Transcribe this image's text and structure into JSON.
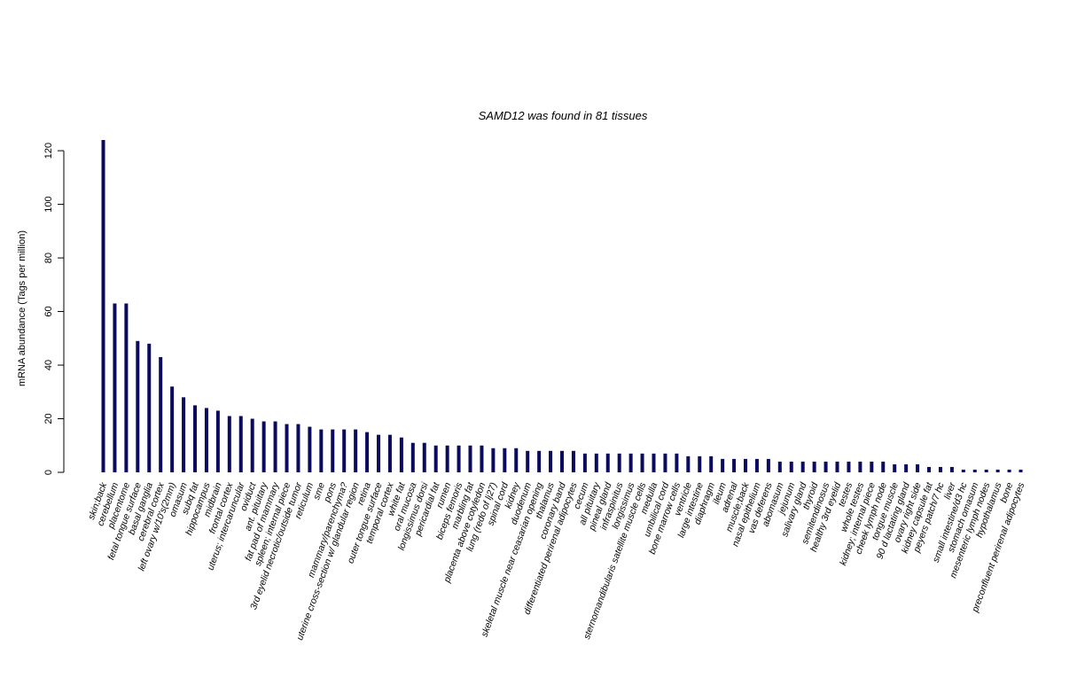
{
  "chart_data": {
    "type": "bar",
    "title": "SAMD12  was found in  81  tissues",
    "ylabel": "mRNA abundance (Tags per million)",
    "xlabel": "",
    "ylim": [
      0,
      124
    ],
    "yticks": [
      0,
      20,
      40,
      60,
      80,
      100,
      120
    ],
    "bar_color": "#0a0a5e",
    "grid": false,
    "categories": [
      "skin;back",
      "cerebellum",
      "placentome",
      "fetal tongue surface",
      "basal ganglia",
      "cerebral cortex",
      "left ovary w/10's(2mm)",
      "omasum",
      "subq fat",
      "hippocampus",
      "midbrain",
      "frontal cortex",
      "uterus; intercaruncular",
      "oviduct",
      "ant. pituitary",
      "fat pad of mammary",
      "spleen; internal piece",
      "3rd eyelid necrotic/outside tumor",
      "reticulum",
      "sme",
      "pons",
      "mammary/parenchyma?",
      "uterine cross-section w/ glandular region",
      "retina",
      "outer tongue surface",
      "temporal cortex",
      "white fat",
      "oral mucosa",
      "longissimus dorsi",
      "pericardial fat",
      "rumen",
      "biceps femoris",
      "marbling fat",
      "placenta above cotyledon",
      "lung (redo of lj27)",
      "spinal cord",
      "kidney",
      "duodenum",
      "skeletal muscle near ceasarian opening",
      "thalamus",
      "coronary band",
      "differentiated perirenal adipocytes",
      "cecum",
      "all pituitary",
      "pineal gland",
      "infraspinitus",
      "longissimus",
      "sternomandibularis satellite muscle cells",
      "medulla",
      "umbilical cord",
      "bone marrow cells",
      "ventricle",
      "large intestine",
      "diaphragm",
      "ileum",
      "adrenal",
      "muscle;back",
      "nasal epithelium",
      "vas deferens",
      "abomasum",
      "jejunum",
      "salivary gland",
      "thyroid",
      "semitendinosus",
      "healthy 3rd eyelid",
      "testes",
      "whole testes",
      "kidney; internal piece",
      "cheek lymph node",
      "tongue muscle",
      "90 d lactating gland",
      "ovary right side",
      "kidney capsule fat",
      "peyers patch/7 hc",
      "liver",
      "small intestine/d3 hc",
      "stomach omasum",
      "mesenteric lymph nodes",
      "hypothalamus",
      "bone",
      "preconfluent perirenal adipocytes"
    ],
    "values": [
      124,
      63,
      63,
      49,
      48,
      43,
      32,
      28,
      25,
      24,
      23,
      21,
      21,
      20,
      19,
      19,
      18,
      18,
      17,
      16,
      16,
      16,
      16,
      15,
      14,
      14,
      13,
      11,
      11,
      10,
      10,
      10,
      10,
      10,
      9,
      9,
      9,
      8,
      8,
      8,
      8,
      8,
      7,
      7,
      7,
      7,
      7,
      7,
      7,
      7,
      7,
      6,
      6,
      6,
      5,
      5,
      5,
      5,
      5,
      4,
      4,
      4,
      4,
      4,
      4,
      4,
      4,
      4,
      4,
      3,
      3,
      3,
      2,
      2,
      2,
      1,
      1,
      1,
      1,
      1,
      1
    ]
  }
}
